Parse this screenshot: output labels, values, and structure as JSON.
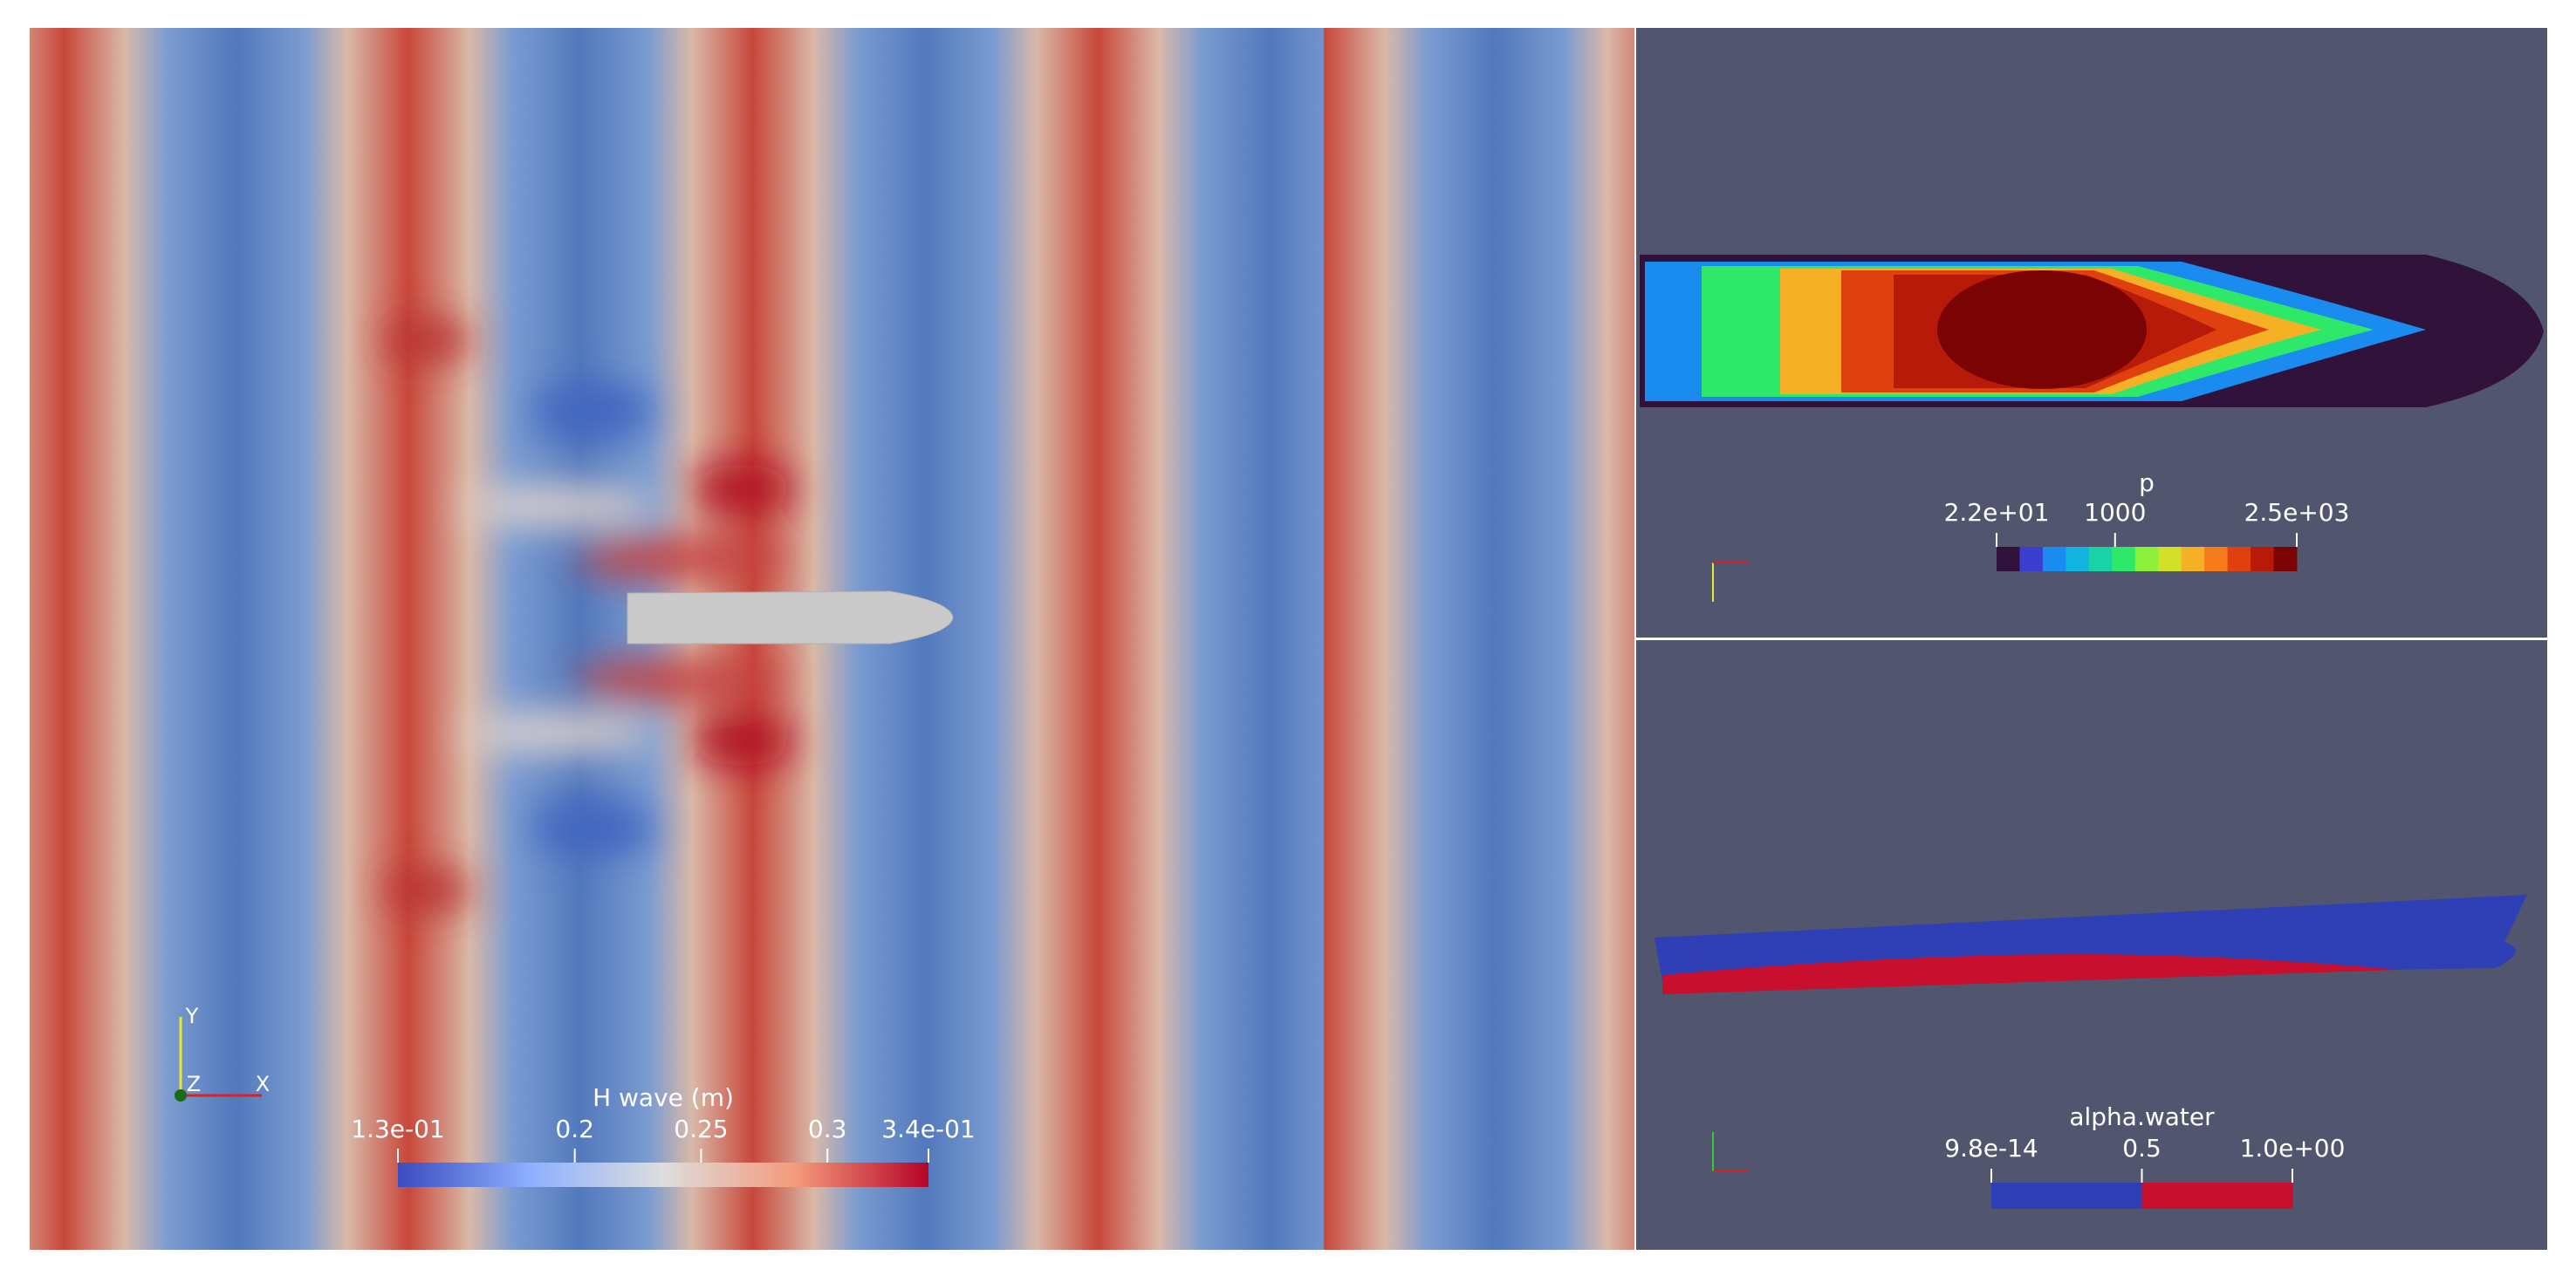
{
  "views": [
    {
      "axes": [
        "Y",
        "Z",
        "X"
      ],
      "colorbar": {
        "title": "H wave (m)",
        "range": [
          0.13,
          0.34
        ],
        "ticks": [
          {
            "value": 0.13,
            "label": "1.3e-01"
          },
          0.2,
          0.25,
          0.3,
          {
            "value": 0.34,
            "label": "3.4e-01"
          }
        ],
        "colors": [
          "#3b4cc0",
          "#8db0fe",
          "#dddddd",
          "#f49a7b",
          "#b40426"
        ],
        "discrete": false
      }
    },
    {
      "colorbar": {
        "title": "p",
        "range": [
          22,
          2500
        ],
        "ticks": [
          {
            "value": 22,
            "label": "2.2e+01"
          },
          1000,
          {
            "value": 2500,
            "label": "2.5e+03"
          }
        ],
        "colors": [
          "#30123b",
          "#3a3fd0",
          "#1a8cf0",
          "#12b5e0",
          "#19d3a8",
          "#2ee86a",
          "#8cf03a",
          "#d2e02a",
          "#f5b025",
          "#f57a1a",
          "#e0400f",
          "#b81a0a",
          "#7a0403"
        ],
        "discrete": true
      }
    },
    {
      "colorbar": {
        "title": "alpha.water",
        "range": [
          9.8e-14,
          1
        ],
        "ticks": [
          {
            "value": 9.8e-14,
            "label": "9.8e-14"
          },
          0.5,
          {
            "value": 1,
            "label": "1.0e+00"
          }
        ],
        "colors": [
          "#2f3fb5",
          "#c8102e"
        ],
        "discrete": true
      }
    }
  ]
}
